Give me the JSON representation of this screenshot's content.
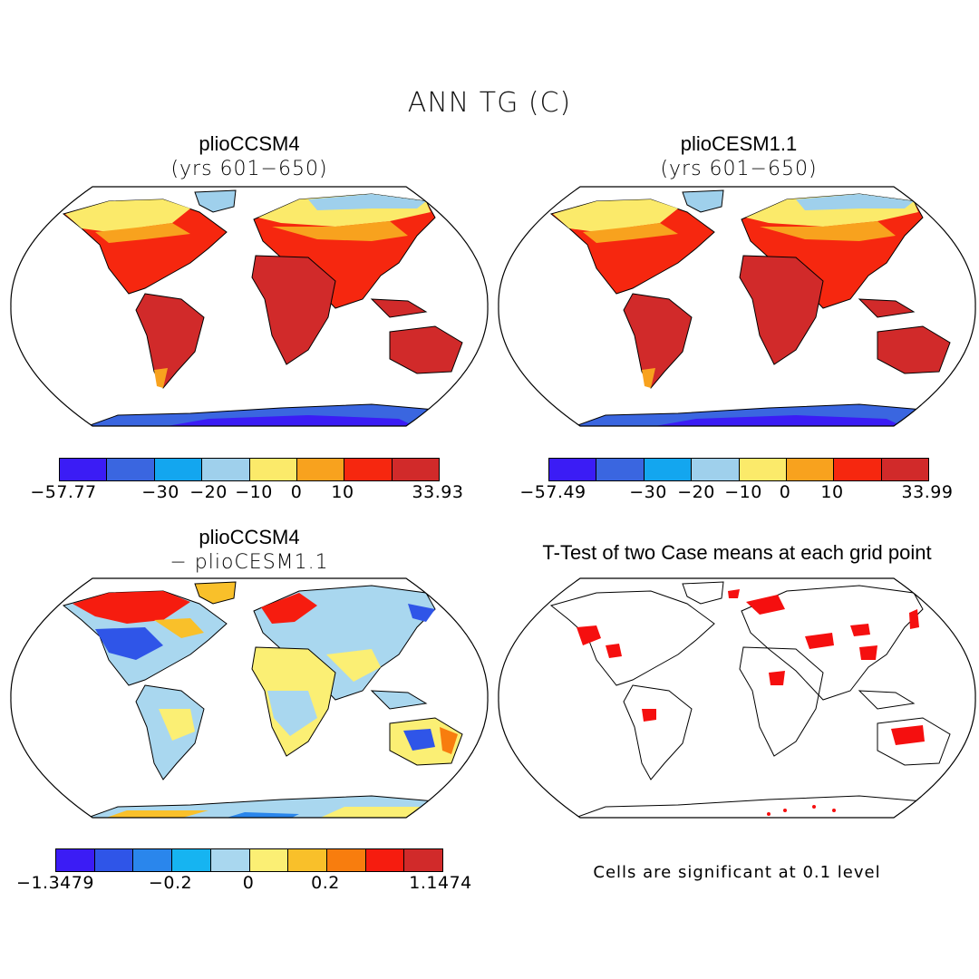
{
  "figure": {
    "title": "ANN TG (C)"
  },
  "panels": {
    "top_left": {
      "title": "plioCCSM4",
      "subtitle": "(yrs 601−650)"
    },
    "top_right": {
      "title": "plioCESM1.1",
      "subtitle": "(yrs 601−650)"
    },
    "bottom_left": {
      "title": "plioCCSM4",
      "subtitle": "− plioCESM1.1"
    },
    "bottom_right": {
      "title": "T-Test of two Case means at each grid point",
      "note": "Cells are significant at 0.1 level"
    }
  },
  "colorbars": {
    "top_left": {
      "colors": [
        "#3b1cf5",
        "#3a66e0",
        "#13a6ef",
        "#9fd0ec",
        "#fbea6a",
        "#f8a21e",
        "#f6270f",
        "#d12a2a"
      ],
      "ticks": [
        "−57.77",
        "−30",
        "−20",
        "−10",
        "0",
        "10",
        "33.93"
      ]
    },
    "top_right": {
      "colors": [
        "#3b1cf5",
        "#3a66e0",
        "#13a6ef",
        "#9fd0ec",
        "#fbea6a",
        "#f8a21e",
        "#f6270f",
        "#d12a2a"
      ],
      "ticks": [
        "−57.49",
        "−30",
        "−20",
        "−10",
        "0",
        "10",
        "33.99"
      ]
    },
    "bottom_left": {
      "colors": [
        "#3b1cf5",
        "#2f55e8",
        "#2a86ec",
        "#16b4f1",
        "#a9d7ef",
        "#fbef74",
        "#f9c02a",
        "#f87d0e",
        "#f61c0f",
        "#d12a2a"
      ],
      "ticks": [
        "−1.3479",
        "−0.2",
        "0",
        "0.2",
        "1.1474"
      ]
    }
  }
}
